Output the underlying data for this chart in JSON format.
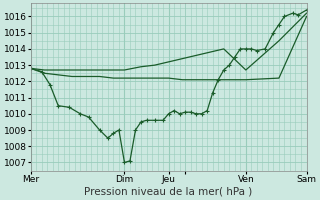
{
  "xlabel": "Pression niveau de la mer( hPa )",
  "background_color": "#cce8e0",
  "grid_color": "#99ccbb",
  "line_color": "#1a5c2a",
  "ylim": [
    1006.5,
    1016.8
  ],
  "yticks": [
    1007,
    1008,
    1009,
    1010,
    1011,
    1012,
    1013,
    1014,
    1015,
    1016
  ],
  "xlim": [
    0,
    10
  ],
  "day_positions": [
    0,
    3.4,
    5.0,
    5.6,
    7.8,
    10.0
  ],
  "day_labels": [
    "Mer",
    "Dim",
    "Jeu",
    "",
    "Ven",
    "Sam"
  ],
  "vline_positions": [
    0,
    3.4,
    5.0,
    7.8,
    10.0
  ],
  "series_main": {
    "x": [
      0,
      0.4,
      0.7,
      1.0,
      1.4,
      1.8,
      2.1,
      2.5,
      2.8,
      3.0,
      3.2,
      3.4,
      3.6,
      3.8,
      4.0,
      4.2,
      4.5,
      4.8,
      5.0,
      5.2,
      5.4,
      5.6,
      5.8,
      6.0,
      6.2,
      6.4,
      6.6,
      6.8,
      7.0,
      7.2,
      7.4,
      7.6,
      7.8,
      8.0,
      8.2,
      8.5,
      8.8,
      9.0,
      9.2,
      9.5,
      9.7,
      10.0
    ],
    "y": [
      1012.8,
      1012.6,
      1011.8,
      1010.5,
      1010.4,
      1010.0,
      1009.8,
      1009.0,
      1008.5,
      1008.8,
      1009.0,
      1007.0,
      1007.1,
      1009.0,
      1009.5,
      1009.6,
      1009.6,
      1009.6,
      1010.0,
      1010.2,
      1010.0,
      1010.1,
      1010.1,
      1010.0,
      1010.0,
      1010.2,
      1011.3,
      1012.1,
      1012.7,
      1013.0,
      1013.5,
      1014.0,
      1014.0,
      1014.0,
      1013.9,
      1014.0,
      1015.0,
      1015.5,
      1016.0,
      1016.2,
      1016.1,
      1016.4
    ]
  },
  "series_upper": {
    "x": [
      0,
      0.5,
      1.0,
      1.5,
      2.0,
      2.5,
      3.0,
      3.4,
      4.0,
      4.5,
      5.0,
      5.5,
      6.0,
      6.5,
      7.0,
      7.8,
      9.0,
      10.0
    ],
    "y": [
      1012.8,
      1012.7,
      1012.7,
      1012.7,
      1012.7,
      1012.7,
      1012.7,
      1012.7,
      1012.9,
      1013.0,
      1013.2,
      1013.4,
      1013.6,
      1013.8,
      1014.0,
      1012.7,
      1014.5,
      1016.2
    ]
  },
  "series_lower": {
    "x": [
      0,
      0.5,
      1.0,
      1.5,
      2.0,
      2.5,
      3.0,
      3.4,
      4.0,
      4.5,
      5.0,
      5.5,
      6.0,
      6.5,
      7.0,
      7.8,
      9.0,
      10.0
    ],
    "y": [
      1012.8,
      1012.5,
      1012.4,
      1012.3,
      1012.3,
      1012.3,
      1012.2,
      1012.2,
      1012.2,
      1012.2,
      1012.2,
      1012.1,
      1012.1,
      1012.1,
      1012.1,
      1012.1,
      1012.2,
      1016.0
    ]
  }
}
